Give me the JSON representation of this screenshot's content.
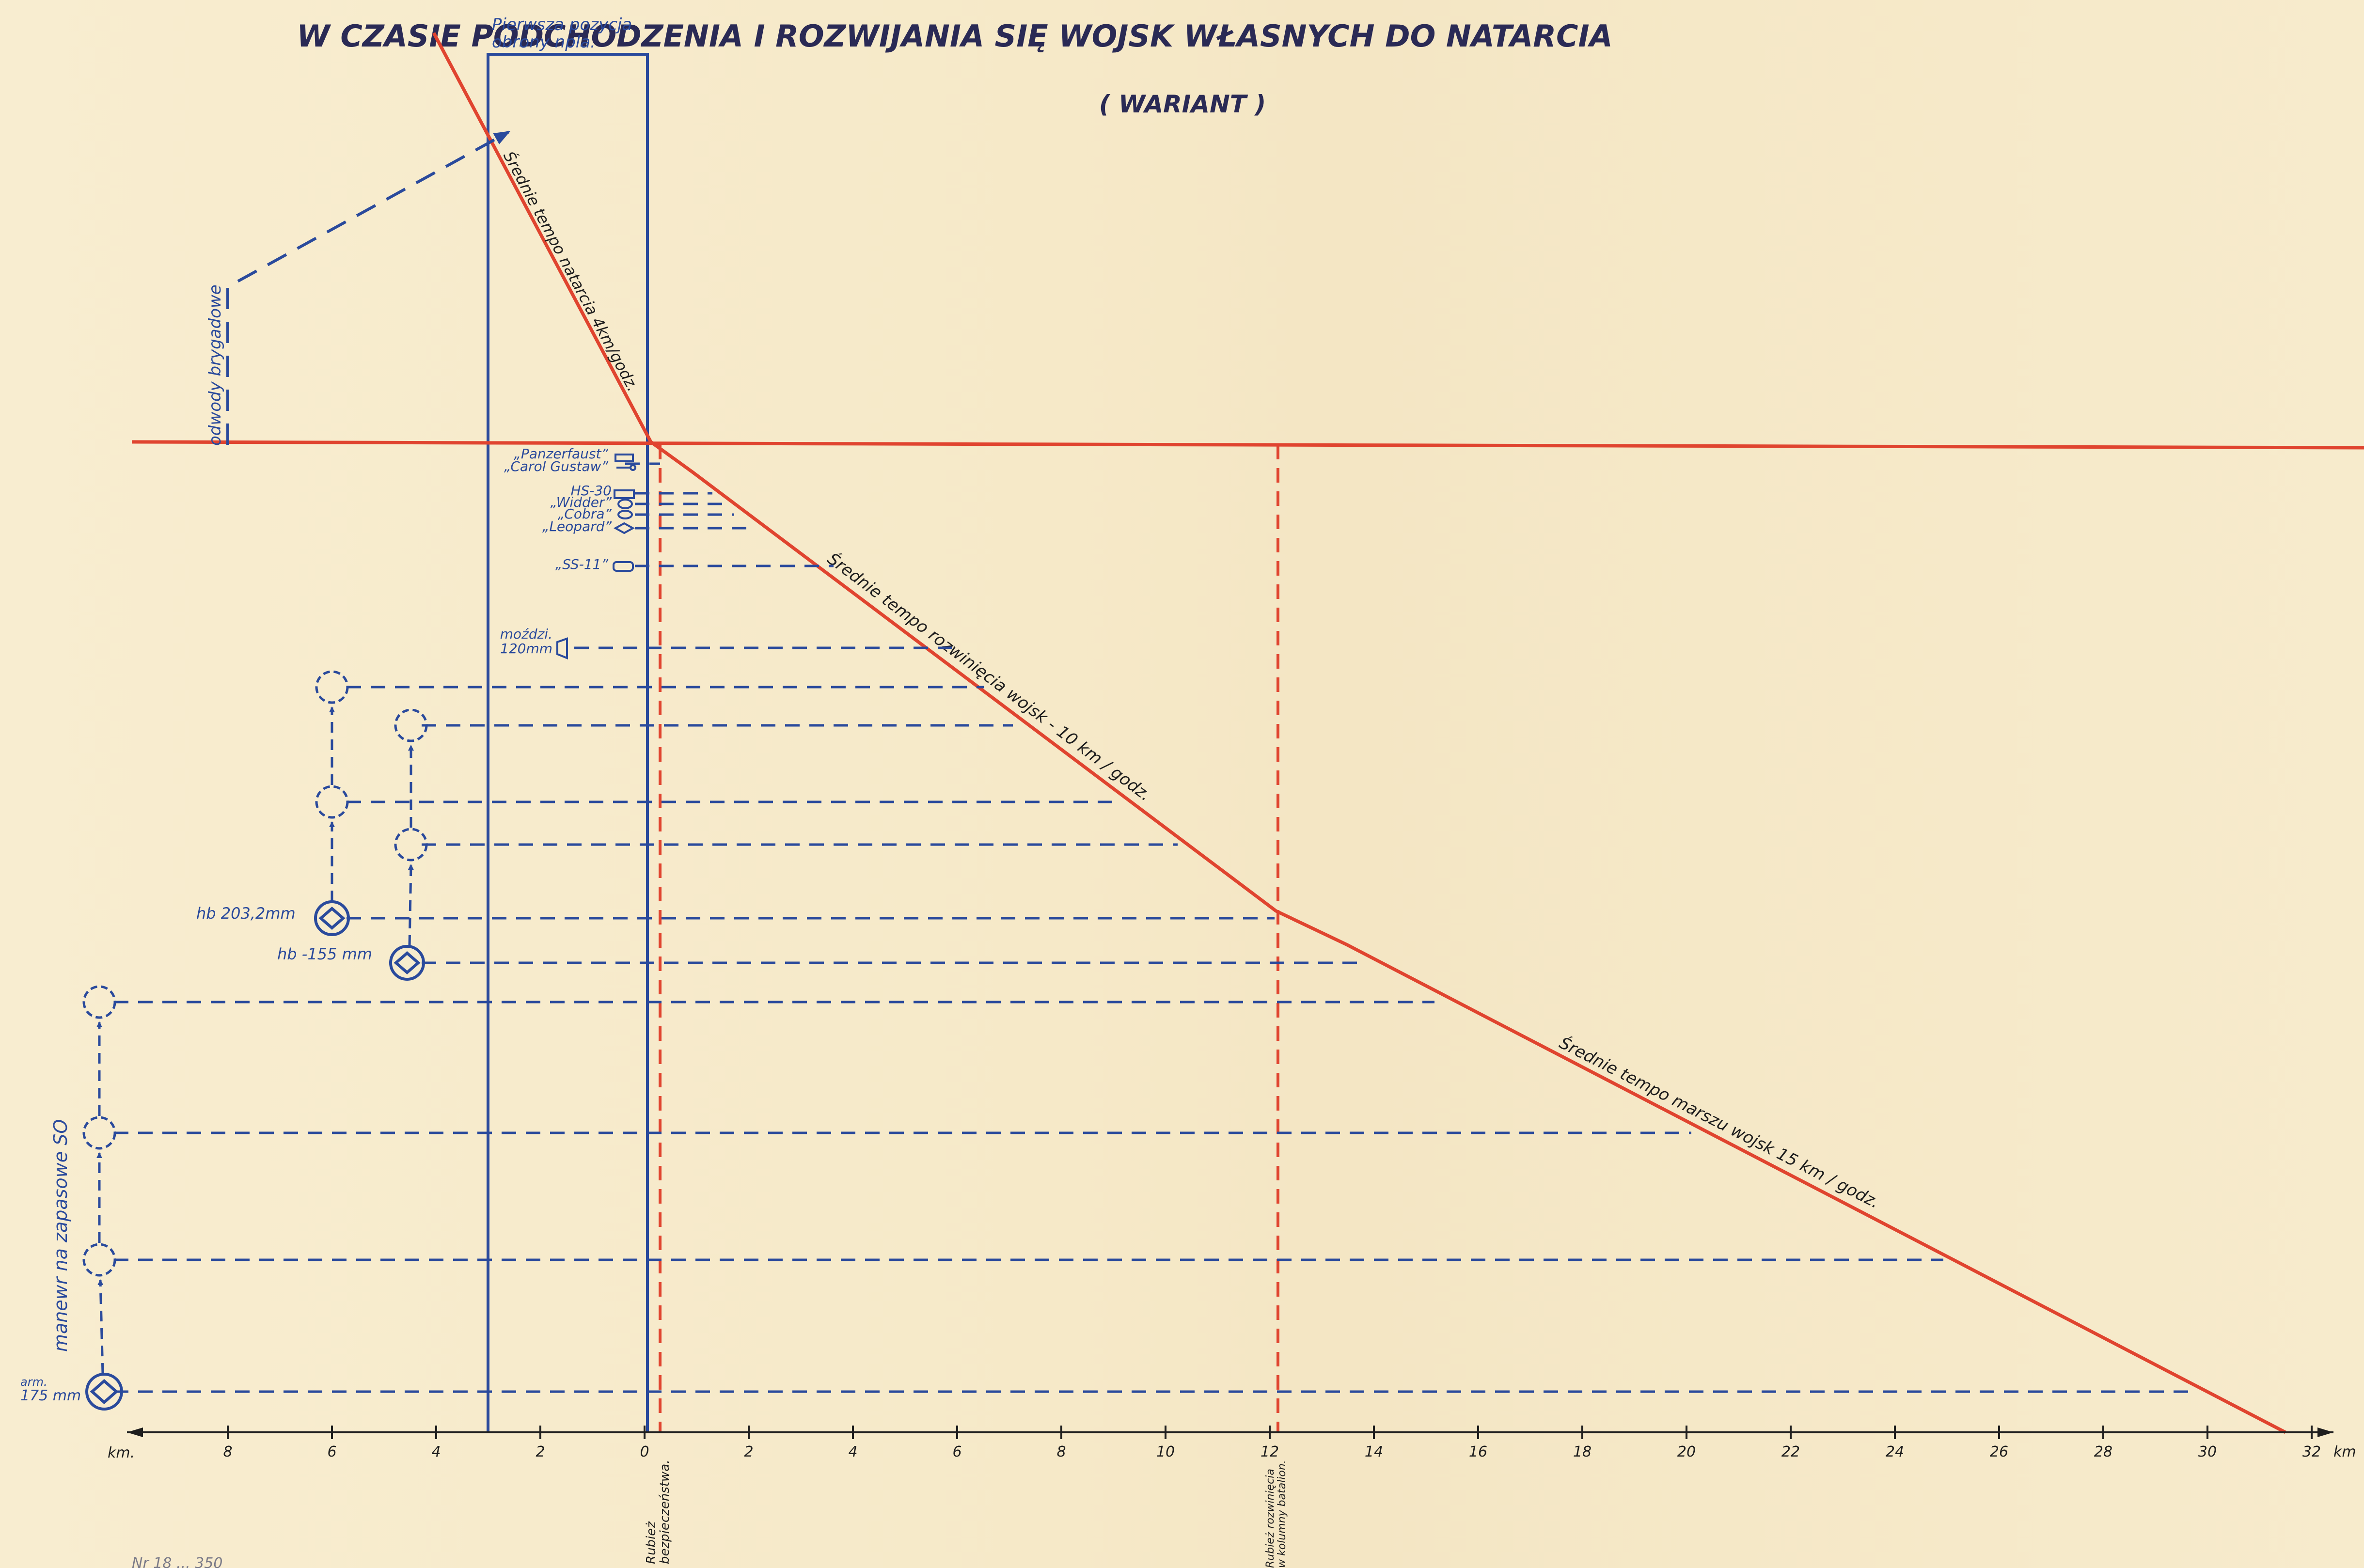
{
  "title": {
    "line1": "W CZASIE PODCHODZENIA I ROZWIJANIA SIĘ WOJSK WŁASNYCH DO NATARCIA",
    "line2": "( WARIANT )"
  },
  "labels": {
    "first_position": [
      "Pierwsza pozycja",
      "obrony npla."
    ],
    "rate_attack": "Średnie tempo natarcia 4km/godz.",
    "rate_deploy": "Średnie tempo rozwinięcia wojsk - 10 km / godz.",
    "rate_march": "Średnie tempo marszu wojsk 15 km / godz.",
    "brigade_reserves": "odwody brygadowe",
    "maneuver": "manewr na zapasowe SO",
    "line_security": [
      "Rubież",
      "bezpieczeństwa."
    ],
    "line_deploy": [
      "Rubież rozwinięcia",
      "w kolumny batalion."
    ],
    "axis_unit_left": "km.",
    "axis_unit_right": "km"
  },
  "weapons": {
    "panzerfaust": "„Panzerfaust”",
    "carl_gustaw": "„Carol Gustaw”",
    "hs30": "HS-30",
    "widder": "„Widder”",
    "cobra": "„Cobra”",
    "leopard": "„Leopard”",
    "ss11": "„SS-11”",
    "mortar_line1": "moździ.",
    "mortar_line2": "120mm",
    "hb203": "hb 203,2mm",
    "hb155": "hb -155 mm",
    "gun175_line1": "arm.",
    "gun175_line2": "175 mm"
  },
  "axis_ticks": {
    "left": [
      "8",
      "6",
      "4",
      "2",
      "0"
    ],
    "right": [
      "2",
      "4",
      "6",
      "8",
      "10",
      "12",
      "14",
      "16",
      "18",
      "20",
      "22",
      "24",
      "26",
      "28",
      "30",
      "32"
    ]
  },
  "footer_note": "Nr 18 ... 350",
  "colors": {
    "red": "#e0442f",
    "blue": "#2a4a9c",
    "paper": "#f7ebcb"
  }
}
